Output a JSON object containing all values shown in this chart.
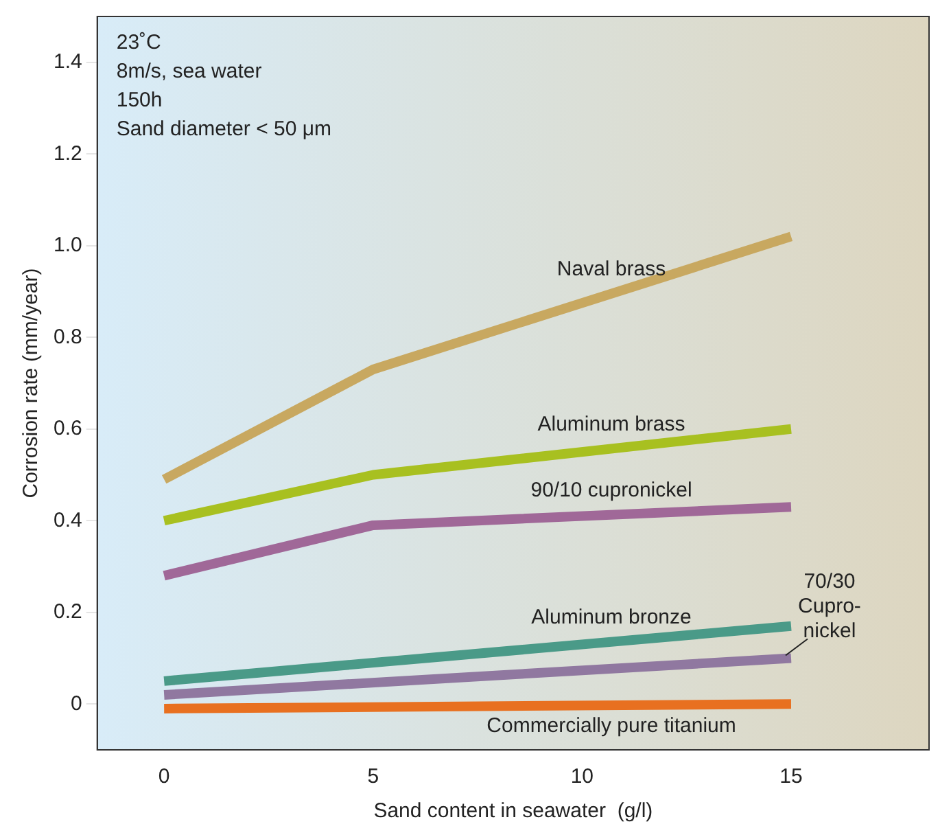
{
  "chart_data": {
    "type": "line",
    "xlabel": "Sand content in seawater  (g/l)",
    "ylabel": "Corrosion rate (mm/year)",
    "xlim": [
      -1.6,
      18.3
    ],
    "xticks": [
      0,
      5,
      10,
      15
    ],
    "ylim": [
      -0.1,
      1.5
    ],
    "yticks": [
      0,
      0.2,
      0.4,
      0.6,
      0.8,
      {
        "value": 1,
        "label": "1.0"
      },
      1.2,
      1.4
    ],
    "grid": false,
    "legend": false,
    "marker": "none",
    "line_style": "solid",
    "annotations": [
      "23˚C",
      "8m/s, sea water",
      "150h",
      "Sand diameter < 50 μm"
    ],
    "series": [
      {
        "name": "Naval brass",
        "color": "#c8a860",
        "x": [
          0,
          5,
          15
        ],
        "values": [
          0.49,
          0.73,
          1.02
        ]
      },
      {
        "name": "Aluminum brass",
        "color": "#a8c020",
        "x": [
          0,
          5,
          15
        ],
        "values": [
          0.4,
          0.5,
          0.6
        ]
      },
      {
        "name": "90/10 cupronickel",
        "color": "#a06898",
        "x": [
          0,
          5,
          15
        ],
        "values": [
          0.28,
          0.39,
          0.43
        ]
      },
      {
        "name": "Aluminum bronze",
        "color": "#4a9a88",
        "x": [
          0,
          15
        ],
        "values": [
          0.05,
          0.17
        ]
      },
      {
        "name": "70/30 Cupro-nickel",
        "color": "#9078a0",
        "x": [
          0,
          15
        ],
        "values": [
          0.02,
          0.1
        ]
      },
      {
        "name": "Commercially pure titanium",
        "color": "#e87020",
        "x": [
          0,
          15
        ],
        "values": [
          -0.01,
          0
        ]
      }
    ]
  }
}
